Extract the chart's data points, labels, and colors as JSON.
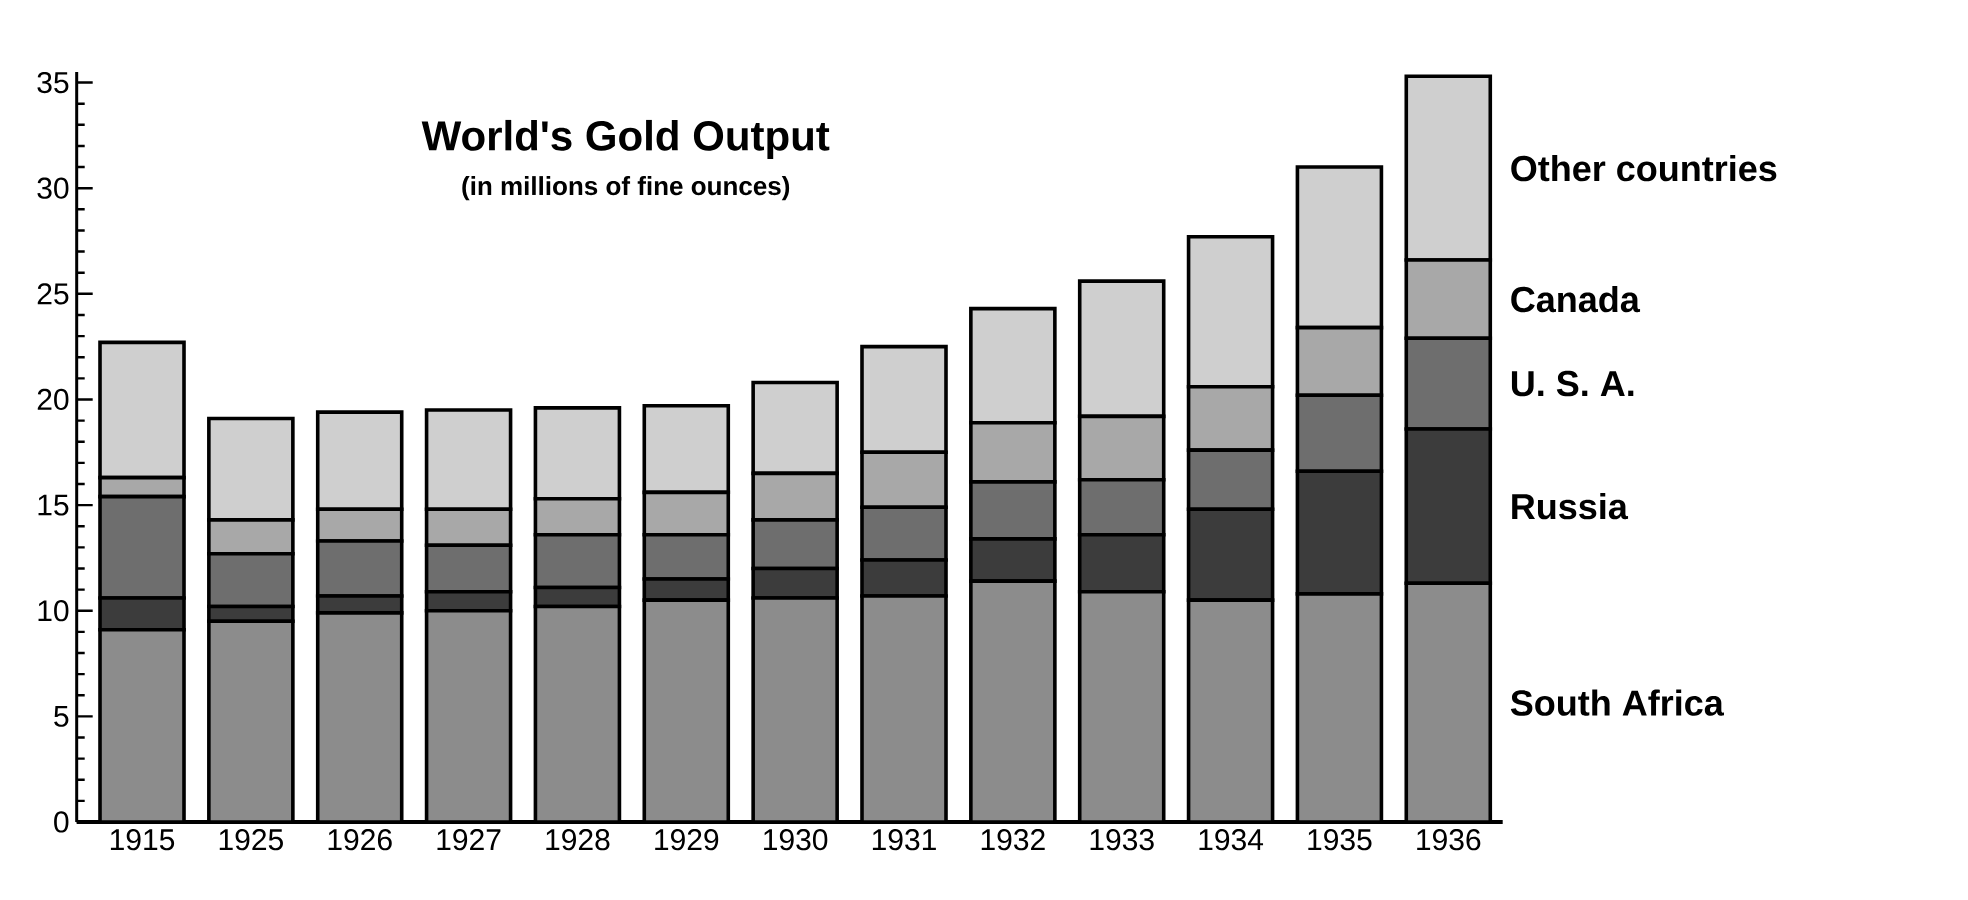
{
  "chart_data": {
    "type": "bar",
    "title": "World's Gold Output",
    "subtitle": "(in millions of fine ounces)",
    "stacked": true,
    "categories": [
      "1915",
      "1925",
      "1926",
      "1927",
      "1928",
      "1929",
      "1930",
      "1931",
      "1932",
      "1933",
      "1934",
      "1935",
      "1936"
    ],
    "ylim": [
      0,
      35.5
    ],
    "yticks": [
      0,
      5,
      10,
      15,
      20,
      25,
      30,
      35
    ],
    "series": [
      {
        "name": "South Africa",
        "color": "#8c8c8c",
        "values": [
          9.1,
          9.5,
          9.9,
          10.0,
          10.2,
          10.5,
          10.6,
          10.7,
          11.4,
          10.9,
          10.5,
          10.8,
          11.3
        ]
      },
      {
        "name": "Russia",
        "color": "#3c3c3c",
        "values": [
          1.5,
          0.7,
          0.8,
          0.9,
          0.9,
          1.0,
          1.4,
          1.7,
          2.0,
          2.7,
          4.3,
          5.8,
          7.3
        ]
      },
      {
        "name": "U. S. A.",
        "color": "#6e6e6e",
        "values": [
          4.8,
          2.5,
          2.6,
          2.2,
          2.5,
          2.1,
          2.3,
          2.5,
          2.7,
          2.6,
          2.8,
          3.6,
          4.3
        ]
      },
      {
        "name": "Canada",
        "color": "#a8a8a8",
        "values": [
          0.9,
          1.6,
          1.5,
          1.7,
          1.7,
          2.0,
          2.2,
          2.6,
          2.8,
          3.0,
          3.0,
          3.2,
          3.7
        ]
      },
      {
        "name": "Other countries",
        "color": "#cfcfcf",
        "values": [
          6.4,
          4.8,
          4.6,
          4.7,
          4.3,
          4.1,
          4.3,
          5.0,
          5.4,
          6.4,
          7.1,
          7.6,
          8.7
        ]
      }
    ]
  }
}
